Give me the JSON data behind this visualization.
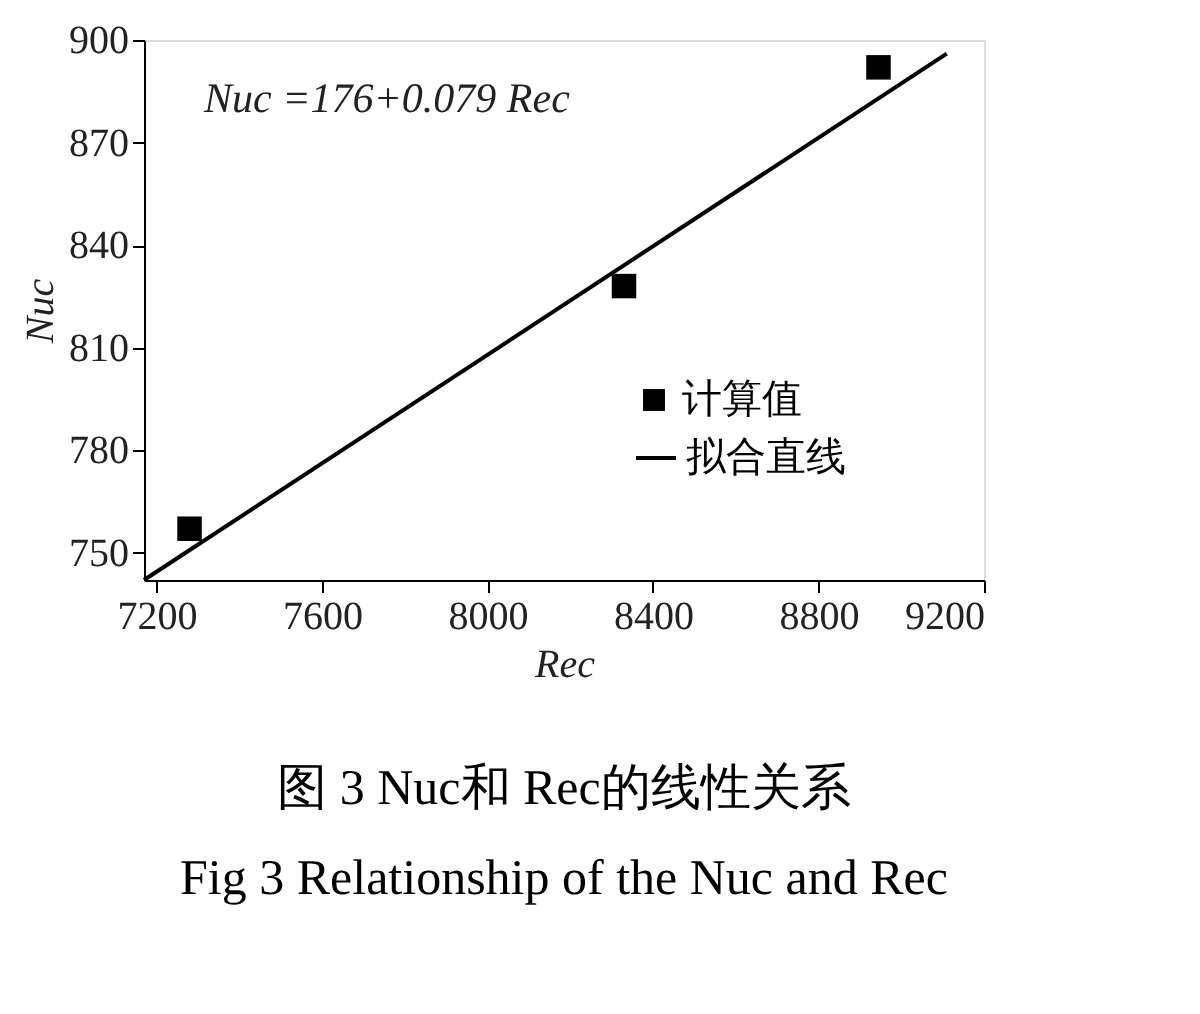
{
  "chart_data": {
    "type": "scatter",
    "xlabel": "Rec",
    "ylabel": "Nuc",
    "xlim": [
      7170,
      9200
    ],
    "xticks": [
      7200,
      7600,
      8000,
      8400,
      8800,
      9200
    ],
    "ylim": [
      742,
      900
    ],
    "yticks": [
      750,
      780,
      810,
      840,
      870,
      900
    ],
    "grid": false,
    "legend": "right",
    "series": [
      {
        "name": "计算值",
        "marker": "square",
        "color": "#000000",
        "x": [
          7280,
          8330,
          8945
        ],
        "values": [
          757,
          828,
          892
        ]
      },
      {
        "name": "拟合直线",
        "type": "line",
        "color": "#000000",
        "x": [
          7170,
          9110
        ],
        "values": [
          742,
          896
        ],
        "marker": "none",
        "line_style": "solid"
      }
    ],
    "annotations": [
      "Nuc =176+0.079 Rec",
      "图 3  Nuc和 Rec的线性关系",
      "Fig 3  Relationship of the Nuc and Rec"
    ]
  }
}
